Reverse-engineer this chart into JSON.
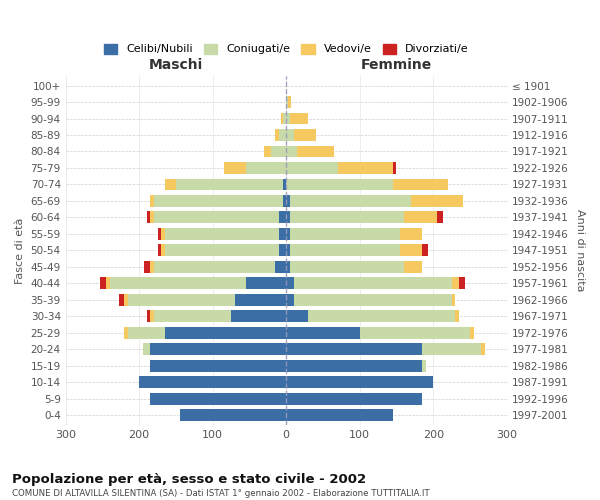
{
  "age_groups": [
    "0-4",
    "5-9",
    "10-14",
    "15-19",
    "20-24",
    "25-29",
    "30-34",
    "35-39",
    "40-44",
    "45-49",
    "50-54",
    "55-59",
    "60-64",
    "65-69",
    "70-74",
    "75-79",
    "80-84",
    "85-89",
    "90-94",
    "95-99",
    "100+"
  ],
  "birth_years": [
    "1997-2001",
    "1992-1996",
    "1987-1991",
    "1982-1986",
    "1977-1981",
    "1972-1976",
    "1967-1971",
    "1962-1966",
    "1957-1961",
    "1952-1956",
    "1947-1951",
    "1942-1946",
    "1937-1941",
    "1932-1936",
    "1927-1931",
    "1922-1926",
    "1917-1921",
    "1912-1916",
    "1907-1911",
    "1902-1906",
    "≤ 1901"
  ],
  "maschi": {
    "celibi": [
      145,
      185,
      200,
      185,
      185,
      165,
      75,
      70,
      55,
      15,
      10,
      10,
      10,
      5,
      5,
      0,
      0,
      0,
      0,
      0,
      0
    ],
    "coniugati": [
      0,
      0,
      0,
      0,
      10,
      50,
      105,
      145,
      185,
      165,
      155,
      155,
      170,
      175,
      145,
      55,
      20,
      10,
      5,
      0,
      0
    ],
    "vedovi": [
      0,
      0,
      0,
      0,
      0,
      5,
      5,
      5,
      5,
      5,
      5,
      5,
      5,
      5,
      15,
      30,
      10,
      5,
      2,
      0,
      0
    ],
    "divorziati": [
      0,
      0,
      0,
      0,
      0,
      0,
      5,
      8,
      8,
      8,
      5,
      5,
      5,
      0,
      0,
      0,
      0,
      0,
      0,
      0,
      0
    ]
  },
  "femmine": {
    "nubili": [
      145,
      185,
      200,
      185,
      185,
      100,
      30,
      10,
      10,
      5,
      5,
      5,
      5,
      5,
      0,
      0,
      0,
      0,
      0,
      0,
      0
    ],
    "coniugate": [
      0,
      0,
      0,
      5,
      80,
      150,
      200,
      215,
      215,
      155,
      150,
      150,
      155,
      165,
      145,
      70,
      15,
      10,
      5,
      2,
      0
    ],
    "vedove": [
      0,
      0,
      0,
      0,
      5,
      5,
      5,
      5,
      10,
      25,
      30,
      30,
      45,
      70,
      75,
      75,
      50,
      30,
      25,
      5,
      0
    ],
    "divorziate": [
      0,
      0,
      0,
      0,
      0,
      0,
      0,
      0,
      8,
      0,
      8,
      0,
      8,
      0,
      0,
      5,
      0,
      0,
      0,
      0,
      0
    ]
  },
  "colors": {
    "celibi": "#3a6ea5",
    "coniugati": "#c8daa8",
    "vedovi": "#f5c860",
    "divorziati": "#cc2222"
  },
  "title": "Popolazione per età, sesso e stato civile - 2002",
  "subtitle": "COMUNE DI ALTAVILLA SILENTINA (SA) - Dati ISTAT 1° gennaio 2002 - Elaborazione TUTTITALIA.IT",
  "xlabel_left": "Maschi",
  "xlabel_right": "Femmine",
  "ylabel_left": "Fasce di età",
  "ylabel_right": "Anni di nascita",
  "xlim": 300,
  "legend_labels": [
    "Celibi/Nubili",
    "Coniugati/e",
    "Vedovi/e",
    "Divorziati/e"
  ],
  "background_color": "#ffffff",
  "grid_color": "#cccccc"
}
